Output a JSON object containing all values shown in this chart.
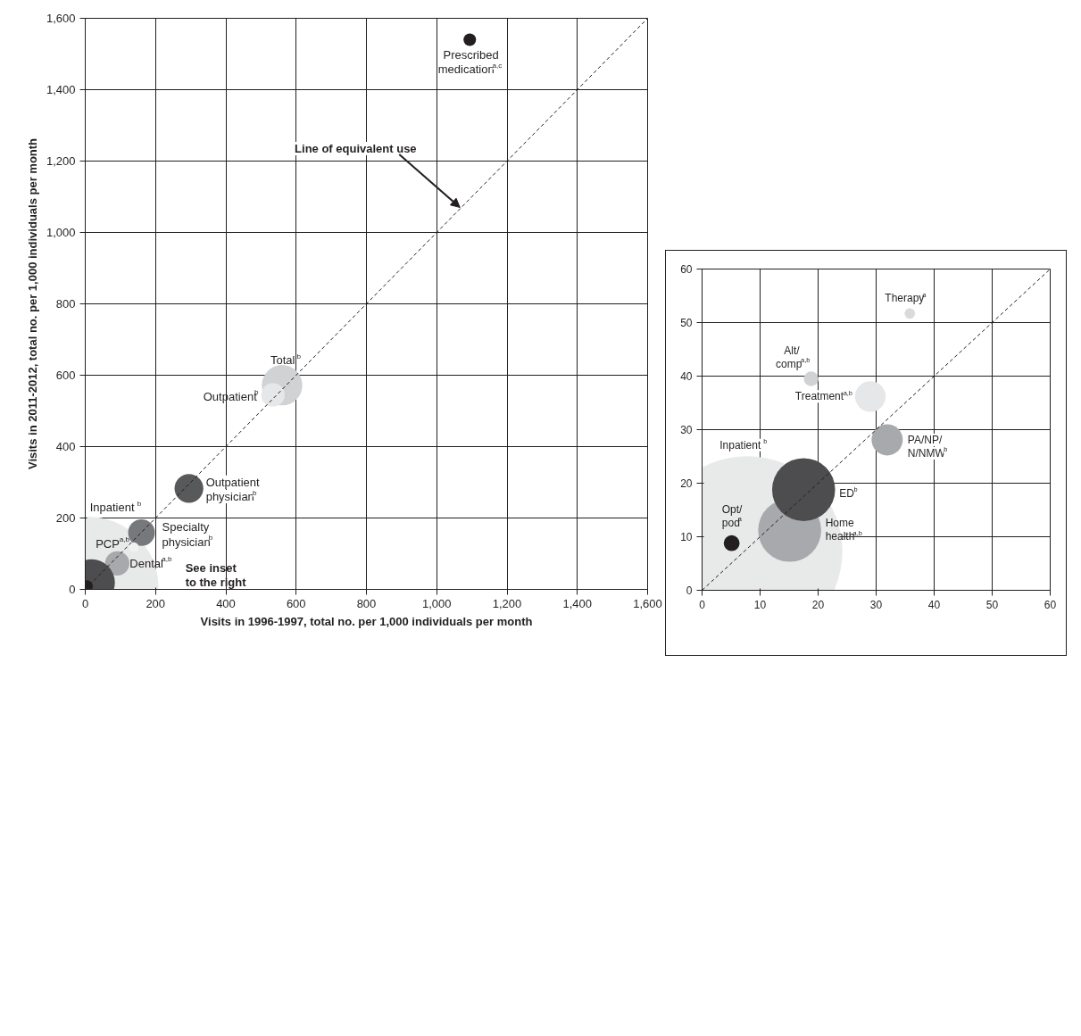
{
  "chart_data": [
    {
      "type": "bubble",
      "xlabel": "Visits in 1996-1997, total no. per 1,000 individuals per month",
      "ylabel": "Visits in 2011-2012, total no. per 1,000 individuals per month",
      "xlim": [
        0,
        1600
      ],
      "ylim": [
        0,
        1600
      ],
      "xticks": [
        0,
        200,
        400,
        600,
        800,
        {
          "value": 1000,
          "label": "1,000"
        },
        {
          "value": 1200,
          "label": "1,200"
        },
        {
          "value": 1400,
          "label": "1,400"
        },
        {
          "value": 1600,
          "label": "1,600"
        }
      ],
      "yticks": [
        0,
        200,
        400,
        600,
        800,
        {
          "value": 1000,
          "label": "1,000"
        },
        {
          "value": 1200,
          "label": "1,200"
        },
        {
          "value": 1400,
          "label": "1,400"
        },
        {
          "value": 1600,
          "label": "1,600"
        }
      ],
      "grid": true,
      "series": [
        {
          "name": "Inpatient$^{b}$",
          "color": "#e8e9e9",
          "x": [
            8
          ],
          "values": [
            7
          ],
          "sizes": [
            1
          ]
        },
        {
          "name": "Prescribed\nmedication$^{a,c}$",
          "color": "#231f20",
          "x": [
            1094
          ],
          "values": [
            1540
          ],
          "sizes": [
            0.008
          ]
        },
        {
          "name": "Total$^{b}$",
          "color": "#d1d2d3",
          "x": [
            560
          ],
          "values": [
            572
          ],
          "sizes": [
            0.083
          ]
        },
        {
          "name": "Outpatient$^{b}$",
          "color": "#e6e7e8",
          "x": [
            534
          ],
          "values": [
            545
          ],
          "sizes": [
            0.028
          ]
        },
        {
          "name": "Outpatient\nphysician$^{b}$",
          "color": "#58595b",
          "x": [
            295
          ],
          "values": [
            283
          ],
          "sizes": [
            0.042
          ]
        },
        {
          "name": "Specialty\nphysician$^{b}$",
          "color": "#77787b",
          "x": [
            160
          ],
          "values": [
            159
          ],
          "sizes": [
            0.036
          ]
        },
        {
          "name": "Dental$^{a,b}$",
          "color": "#a7a9ac",
          "x": [
            91
          ],
          "values": [
            73
          ],
          "sizes": [
            0.03
          ]
        },
        {
          "name": "PCP$^{a,b}$",
          "color": "#f1f1f2",
          "x": [
            138
          ],
          "values": [
            118
          ],
          "sizes": [
            0.005
          ]
        },
        {
          "color": "#4d4d4f",
          "x": [
            18
          ],
          "values": [
            19
          ],
          "sizes": [
            0.11
          ]
        },
        {
          "color": "#231f20",
          "x": [
            5
          ],
          "values": [
            9
          ],
          "sizes": [
            0.007
          ]
        },
        {
          "type": "line",
          "color": "#231f20",
          "line_style": "dashed",
          "x": [
            0,
            1600
          ],
          "values": [
            0,
            1600
          ]
        }
      ],
      "annotations": [
        {
          "text": "Line of equivalent use",
          "x": 1066,
          "y": 1070
        },
        "See inset\nto the right"
      ]
    },
    {
      "type": "bubble",
      "xlim": [
        0,
        60
      ],
      "ylim": [
        0,
        60
      ],
      "xticks": [
        0,
        10,
        20,
        30,
        40,
        50,
        60
      ],
      "yticks": [
        0,
        10,
        20,
        30,
        40,
        50,
        60
      ],
      "grid": true,
      "series": [
        {
          "name": "Inpatient$^{b}$",
          "color": "#e8e9e9",
          "x": [
            7.8
          ],
          "values": [
            7.3
          ],
          "sizes": [
            1
          ]
        },
        {
          "name": "Home\nhealth$^{a,b}$",
          "color": "#a7a9ac",
          "x": [
            15.1
          ],
          "values": [
            11.2
          ],
          "sizes": [
            0.11
          ]
        },
        {
          "name": "ED$^{b}$",
          "color": "#4d4d4f",
          "x": [
            17.5
          ],
          "values": [
            18.8
          ],
          "sizes": [
            0.11
          ]
        },
        {
          "name": "Opt/\npod$^{a}$",
          "color": "#231f20",
          "x": [
            5.1
          ],
          "values": [
            8.8
          ],
          "sizes": [
            0.007
          ]
        },
        {
          "name": "Treatment$^{a,b}$",
          "color": "#e6e7e8",
          "x": [
            29.0
          ],
          "values": [
            36.2
          ],
          "sizes": [
            0.026
          ]
        },
        {
          "name": "PA/NP/\nN/NMW$^{b}$",
          "color": "#a7a9ac",
          "x": [
            31.9
          ],
          "values": [
            28.1
          ],
          "sizes": [
            0.027
          ]
        },
        {
          "name": "Alt/\ncomp$^{a,b}$",
          "color": "#d1d2d3",
          "x": [
            18.8
          ],
          "values": [
            39.5
          ],
          "sizes": [
            0.006
          ]
        },
        {
          "name": "Therapy$^{a}$",
          "color": "#d9dadb",
          "x": [
            35.8
          ],
          "values": [
            51.7
          ],
          "sizes": [
            0.003
          ]
        },
        {
          "type": "line",
          "color": "#231f20",
          "line_style": "dashed",
          "x": [
            0,
            60
          ],
          "values": [
            0,
            60
          ]
        }
      ]
    }
  ]
}
